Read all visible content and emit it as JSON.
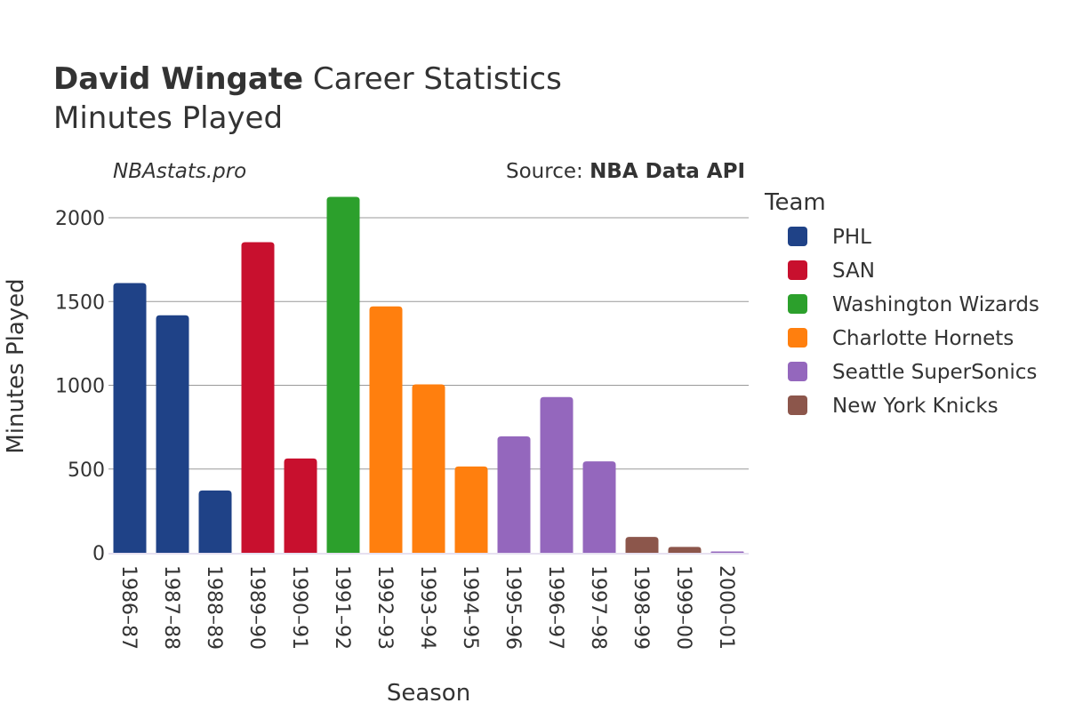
{
  "chart_data": {
    "type": "bar",
    "title_bold": "David Wingate",
    "title_rest": " Career Statistics",
    "subtitle": "Minutes Played",
    "watermark": "NBAstats.pro",
    "source_prefix": "Source: ",
    "source_name": "NBA Data API",
    "xlabel": "Season",
    "ylabel": "Minutes Played",
    "ylim": [
      0,
      2200
    ],
    "yticks": [
      0,
      500,
      1000,
      1500,
      2000
    ],
    "grid": true,
    "legend_title": "Team",
    "legend_position": "right",
    "teams": [
      {
        "name": "PHL",
        "color": "#1f4287"
      },
      {
        "name": "SAN",
        "color": "#c8102e"
      },
      {
        "name": "Washington Wizards",
        "color": "#2ca02c"
      },
      {
        "name": "Charlotte Hornets",
        "color": "#ff7f0e"
      },
      {
        "name": "Seattle SuperSonics",
        "color": "#9467bd"
      },
      {
        "name": "New York Knicks",
        "color": "#8c564b"
      }
    ],
    "categories": [
      "1986–87",
      "1987–88",
      "1988–89",
      "1989–90",
      "1990–91",
      "1991–92",
      "1992–93",
      "1993–94",
      "1994–95",
      "1995–96",
      "1996–97",
      "1997–98",
      "1998–99",
      "1999–00",
      "2000–01"
    ],
    "values": [
      1610,
      1418,
      372,
      1854,
      563,
      2125,
      1471,
      1005,
      515,
      695,
      930,
      546,
      95,
      35,
      8
    ],
    "bar_teams": [
      0,
      0,
      0,
      1,
      1,
      2,
      3,
      3,
      3,
      4,
      4,
      4,
      5,
      5,
      4
    ]
  }
}
